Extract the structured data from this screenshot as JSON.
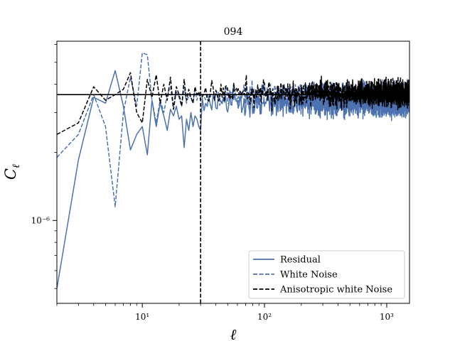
{
  "chart_data": {
    "type": "line",
    "title": "094",
    "xlabel": "ℓ",
    "ylabel": "C_ℓ",
    "xscale": "log",
    "yscale": "log",
    "xlim": [
      2,
      1536
    ],
    "ylim": [
      4.3e-07,
      6.2e-06
    ],
    "x_ticks": [
      {
        "value": 10,
        "label": "10¹"
      },
      {
        "value": 100,
        "label": "10²"
      },
      {
        "value": 1000,
        "label": "10³"
      }
    ],
    "y_ticks": [
      {
        "value": 1e-06,
        "label": "10⁻⁶"
      }
    ],
    "legend": {
      "position": "lower right",
      "entries": [
        {
          "label": "Residual",
          "series": "residual"
        },
        {
          "label": "White Noise",
          "series": "white_noise"
        },
        {
          "label": "Anisotropic white Noise",
          "series": "aniso_noise"
        }
      ]
    },
    "reference_lines": [
      {
        "orientation": "horizontal",
        "y": 3.6e-06,
        "style": "solid",
        "color": "#000000"
      },
      {
        "orientation": "vertical",
        "x": 30,
        "style": "dashed",
        "color": "#000000"
      }
    ],
    "series": [
      {
        "name": "residual",
        "label": "Residual",
        "color": "#4c72b0",
        "style": "solid",
        "noise_floor": 3.3e-06,
        "noise_amplitude": 0.1,
        "x": [
          2,
          3,
          4,
          5,
          6,
          7,
          8,
          9,
          10,
          11,
          12,
          13,
          14,
          15,
          16,
          17,
          18,
          19,
          20,
          21,
          22,
          23,
          24,
          25,
          26,
          27,
          28,
          29,
          30
        ],
        "values": [
          5e-07,
          1.85e-06,
          3.5e-06,
          3.3e-06,
          4.6e-06,
          3.2e-06,
          2.05e-06,
          2.4e-06,
          2.6e-06,
          1.95e-06,
          3.4e-06,
          2.6e-06,
          3.3e-06,
          2.9e-06,
          2.5e-06,
          3.1e-06,
          2.9e-06,
          3.2e-06,
          2.8e-06,
          2.9e-06,
          2.1e-06,
          2.8e-06,
          2.5e-06,
          3e-06,
          2.6e-06,
          2.9e-06,
          2.8e-06,
          2.6e-06,
          2.5e-06
        ]
      },
      {
        "name": "white_noise",
        "label": "White Noise",
        "color": "#4c72b0",
        "style": "dashed",
        "noise_floor": 3.6e-06,
        "noise_amplitude": 0.09,
        "x": [
          2,
          3,
          4,
          5,
          6,
          7,
          8,
          9,
          10,
          11,
          12,
          13,
          14,
          15,
          16,
          17,
          18,
          19,
          20,
          21,
          22,
          23,
          24,
          25,
          26,
          27,
          28,
          29,
          30
        ],
        "values": [
          1.9e-06,
          2.4e-06,
          3.6e-06,
          2.6e-06,
          1.15e-06,
          3e-06,
          4.3e-06,
          3.2e-06,
          5.5e-06,
          5.4e-06,
          3.4e-06,
          2.7e-06,
          3.4e-06,
          3e-06,
          3.6e-06,
          3.9e-06,
          3.1e-06,
          3.7e-06,
          3.5e-06,
          3.2e-06,
          3.9e-06,
          3.3e-06,
          3.6e-06,
          3.5e-06,
          3.3e-06,
          3.8e-06,
          3.4e-06,
          3.7e-06,
          3.5e-06
        ]
      },
      {
        "name": "aniso_noise",
        "label": "Anisotropic white Noise",
        "color": "#000000",
        "style": "dashed",
        "noise_floor": 3.65e-06,
        "noise_amplitude": 0.1,
        "x": [
          2,
          3,
          4,
          5,
          6,
          7,
          8,
          9,
          10,
          11,
          12,
          13,
          14,
          15,
          16,
          17,
          18,
          19,
          20,
          21,
          22,
          23,
          24,
          25,
          26,
          27,
          28,
          29,
          30
        ],
        "values": [
          2.4e-06,
          2.7e-06,
          3.9e-06,
          3.4e-06,
          3.6e-06,
          3.8e-06,
          4.5e-06,
          3e-06,
          2.7e-06,
          4.2e-06,
          3.5e-06,
          4.4e-06,
          3.3e-06,
          4e-06,
          3.4e-06,
          4.3e-06,
          3.1e-06,
          3.9e-06,
          3.6e-06,
          3.2e-06,
          4.2e-06,
          3.4e-06,
          3.8e-06,
          3.5e-06,
          3.3e-06,
          3.9e-06,
          3.6e-06,
          3.7e-06,
          3.4e-06
        ]
      }
    ]
  }
}
